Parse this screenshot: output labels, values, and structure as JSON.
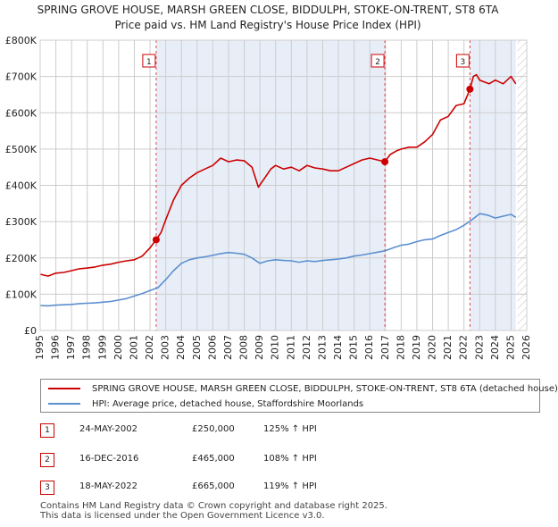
{
  "title": {
    "line1": "SPRING GROVE HOUSE, MARSH GREEN CLOSE, BIDDULPH, STOKE-ON-TRENT, ST8 6TA",
    "line2": "Price paid vs. HM Land Registry's House Price Index (HPI)"
  },
  "colors": {
    "property_line": "#cc0000",
    "hpi_line": "#5b8fd0",
    "band_fill": "#e8eef8",
    "marker_border": "#cc0000",
    "grid": "#cccccc"
  },
  "chart_data": {
    "type": "line",
    "x_range": [
      1995,
      2026
    ],
    "ylim": [
      0,
      800000
    ],
    "y_ticks": [
      0,
      100000,
      200000,
      300000,
      400000,
      500000,
      600000,
      700000,
      800000
    ],
    "y_tick_labels": [
      "£0",
      "£100K",
      "£200K",
      "£300K",
      "£400K",
      "£500K",
      "£600K",
      "£700K",
      "£800K"
    ],
    "x_ticks": [
      1995,
      1996,
      1997,
      1998,
      1999,
      2000,
      2001,
      2002,
      2003,
      2004,
      2005,
      2006,
      2007,
      2008,
      2009,
      2010,
      2011,
      2012,
      2013,
      2014,
      2015,
      2016,
      2017,
      2018,
      2019,
      2020,
      2021,
      2022,
      2023,
      2024,
      2025,
      2026
    ],
    "shaded_bands": [
      [
        2002.39,
        2016.96
      ],
      [
        2022.38,
        2025.3
      ]
    ],
    "future_hatch_from": 2025.4,
    "series": [
      {
        "name": "SPRING GROVE HOUSE, MARSH GREEN CLOSE, BIDDULPH, STOKE-ON-TRENT, ST8 6TA (detached house)",
        "color": "#cc0000",
        "x": [
          1995,
          1995.5,
          1996,
          1996.5,
          1997,
          1997.5,
          1998,
          1998.5,
          1999,
          1999.5,
          2000,
          2000.5,
          2001,
          2001.5,
          2002,
          2002.39,
          2002.7,
          2003,
          2003.5,
          2004,
          2004.5,
          2005,
          2005.5,
          2006,
          2006.5,
          2007,
          2007.5,
          2008,
          2008.5,
          2008.9,
          2009.3,
          2009.7,
          2010,
          2010.5,
          2011,
          2011.5,
          2012,
          2012.5,
          2013,
          2013.5,
          2014,
          2014.5,
          2015,
          2015.5,
          2016,
          2016.5,
          2016.96,
          2017.3,
          2017.7,
          2018,
          2018.5,
          2019,
          2019.5,
          2020,
          2020.5,
          2021,
          2021.5,
          2022,
          2022.38,
          2022.6,
          2022.8,
          2023,
          2023.3,
          2023.6,
          2024,
          2024.5,
          2025,
          2025.3
        ],
        "values": [
          155000,
          150000,
          158000,
          160000,
          165000,
          170000,
          172000,
          175000,
          180000,
          183000,
          188000,
          192000,
          195000,
          205000,
          228000,
          250000,
          270000,
          305000,
          360000,
          400000,
          420000,
          435000,
          445000,
          455000,
          475000,
          465000,
          470000,
          468000,
          450000,
          395000,
          420000,
          445000,
          455000,
          445000,
          450000,
          440000,
          455000,
          448000,
          445000,
          440000,
          440000,
          450000,
          460000,
          470000,
          475000,
          470000,
          465000,
          485000,
          495000,
          500000,
          505000,
          505000,
          520000,
          540000,
          580000,
          590000,
          620000,
          625000,
          665000,
          700000,
          705000,
          690000,
          685000,
          680000,
          690000,
          680000,
          700000,
          680000
        ]
      },
      {
        "name": "HPI: Average price, detached house, Staffordshire Moorlands",
        "color": "#5b8fd0",
        "x": [
          1995,
          1995.5,
          1996,
          1996.5,
          1997,
          1997.5,
          1998,
          1998.5,
          1999,
          1999.5,
          2000,
          2000.5,
          2001,
          2001.5,
          2002,
          2002.5,
          2003,
          2003.5,
          2004,
          2004.5,
          2005,
          2005.5,
          2006,
          2006.5,
          2007,
          2007.5,
          2008,
          2008.5,
          2009,
          2009.5,
          2010,
          2010.5,
          2011,
          2011.5,
          2012,
          2012.5,
          2013,
          2013.5,
          2014,
          2014.5,
          2015,
          2015.5,
          2016,
          2016.5,
          2017,
          2017.5,
          2018,
          2018.5,
          2019,
          2019.5,
          2020,
          2020.5,
          2021,
          2021.5,
          2022,
          2022.5,
          2023,
          2023.5,
          2024,
          2024.5,
          2025,
          2025.3
        ],
        "values": [
          69000,
          68000,
          70000,
          71000,
          72000,
          74000,
          75000,
          76000,
          78000,
          80000,
          84000,
          88000,
          95000,
          102000,
          110000,
          118000,
          140000,
          165000,
          185000,
          195000,
          200000,
          203000,
          207000,
          212000,
          215000,
          213000,
          210000,
          200000,
          185000,
          192000,
          195000,
          193000,
          192000,
          188000,
          192000,
          190000,
          193000,
          195000,
          197000,
          200000,
          205000,
          208000,
          212000,
          216000,
          220000,
          228000,
          235000,
          238000,
          245000,
          250000,
          252000,
          262000,
          270000,
          278000,
          290000,
          305000,
          322000,
          318000,
          310000,
          315000,
          320000,
          312000
        ]
      }
    ],
    "sale_markers": [
      {
        "label": "1",
        "x": 2002.39,
        "value": 250000
      },
      {
        "label": "2",
        "x": 2016.96,
        "value": 465000
      },
      {
        "label": "3",
        "x": 2022.38,
        "value": 665000
      }
    ]
  },
  "legend": {
    "property_label": "SPRING GROVE HOUSE, MARSH GREEN CLOSE, BIDDULPH, STOKE-ON-TRENT, ST8 6TA (detached house)",
    "hpi_label": "HPI: Average price, detached house, Staffordshire Moorlands"
  },
  "sales": [
    {
      "num": "1",
      "date": "24-MAY-2002",
      "price": "£250,000",
      "hpi": "125% ↑ HPI"
    },
    {
      "num": "2",
      "date": "16-DEC-2016",
      "price": "£465,000",
      "hpi": "108% ↑ HPI"
    },
    {
      "num": "3",
      "date": "18-MAY-2022",
      "price": "£665,000",
      "hpi": "119% ↑ HPI"
    }
  ],
  "footer": {
    "line1": "Contains HM Land Registry data © Crown copyright and database right 2025.",
    "line2": "This data is licensed under the Open Government Licence v3.0."
  }
}
